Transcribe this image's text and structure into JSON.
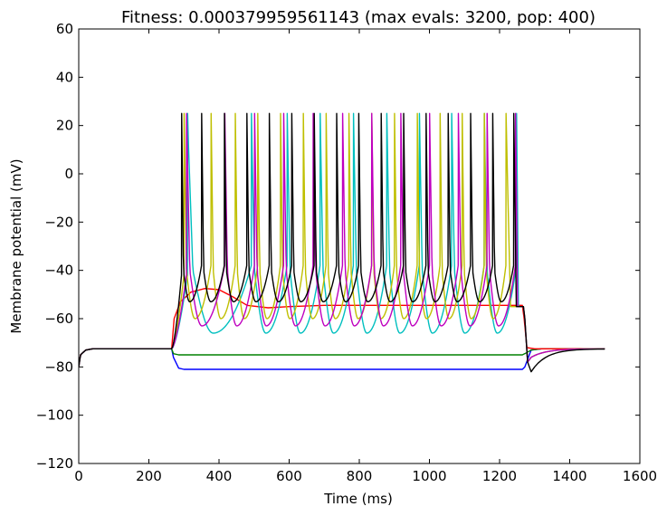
{
  "chart_data": {
    "type": "line",
    "title": "Fitness: 0.000379959561143 (max evals: 3200, pop: 400)",
    "xlabel": "Time (ms)",
    "ylabel": "Membrane potential (mV)",
    "xlim": [
      0,
      1600
    ],
    "ylim": [
      -120,
      60
    ],
    "xticks": [
      0,
      200,
      400,
      600,
      800,
      1000,
      1200,
      1400,
      1600
    ],
    "yticks": [
      -120,
      -100,
      -80,
      -60,
      -40,
      -20,
      0,
      20,
      40,
      60
    ],
    "xtick_labels": [
      "0",
      "200",
      "400",
      "600",
      "800",
      "1000",
      "1200",
      "1400",
      "1600"
    ],
    "ytick_labels": [
      "−120",
      "−100",
      "−80",
      "−60",
      "−40",
      "−20",
      "0",
      "20",
      "40",
      "60"
    ],
    "grid": false,
    "legend": "none",
    "series": [
      {
        "color": "#0000ff",
        "x": [
          0,
          5,
          20,
          40,
          265,
          270,
          285,
          300,
          1265,
          1272,
          1290,
          1320,
          1500
        ],
        "y": [
          -80,
          -75,
          -73,
          -72.5,
          -72.5,
          -76,
          -80.5,
          -81,
          -81,
          -80,
          -73,
          -72.5,
          -72.5
        ]
      },
      {
        "color": "#008000",
        "x": [
          0,
          5,
          20,
          40,
          265,
          270,
          285,
          300,
          1265,
          1272,
          1290,
          1320,
          1500
        ],
        "y": [
          -80,
          -75,
          -73,
          -72.5,
          -72.5,
          -74.5,
          -75,
          -75,
          -75,
          -74.5,
          -73,
          -72.5,
          -72.5
        ]
      },
      {
        "color": "#ff0000",
        "x": [
          0,
          5,
          20,
          40,
          265,
          272,
          290,
          320,
          360,
          400,
          440,
          480,
          540,
          600,
          700,
          800,
          1000,
          1200,
          1265,
          1270,
          1278,
          1300,
          1500
        ],
        "y": [
          -80,
          -75,
          -73,
          -72.5,
          -72.5,
          -60,
          -53,
          -49,
          -47.5,
          -48,
          -51,
          -54.5,
          -55.5,
          -55,
          -54.5,
          -54.5,
          -54.5,
          -54.5,
          -54.5,
          -60,
          -72,
          -72.5,
          -72.5
        ]
      },
      {
        "color": "#00bfbf",
        "spikes": [
          310,
          492,
          594,
          688,
          783,
          878,
          971,
          1063,
          1156,
          1248
        ],
        "x": [
          0,
          5,
          20,
          40,
          265,
          270,
          1500
        ],
        "y": [
          -80,
          -75,
          -73,
          -72.5,
          -72.5,
          -72.5,
          -72.5
        ]
      },
      {
        "color": "#bfbf00",
        "spikes": [
          300,
          377,
          446,
          510,
          575,
          640,
          705,
          770,
          835,
          900,
          965,
          1030,
          1093,
          1156,
          1218
        ],
        "x": [
          0,
          5,
          20,
          40,
          265,
          270,
          1500
        ],
        "y": [
          -80,
          -75,
          -73,
          -72.5,
          -72.5,
          -72.5,
          -72.5
        ]
      },
      {
        "color": "#bf00bf",
        "spikes": [
          307,
          416,
          501,
          584,
          668,
          752,
          835,
          918,
          1000,
          1082,
          1164,
          1245
        ],
        "x": [
          0,
          5,
          20,
          40,
          265,
          270,
          1500
        ],
        "y": [
          -80,
          -75,
          -73,
          -72.5,
          -72.5,
          -72.5,
          -72.5
        ]
      },
      {
        "color": "#000000",
        "spikes": [
          293,
          350,
          415,
          479,
          543,
          607,
          671,
          735,
          798,
          862,
          926,
          990,
          1053,
          1117,
          1180,
          1240
        ],
        "x": [
          0,
          5,
          20,
          40,
          265,
          270,
          1500
        ],
        "y": [
          -80,
          -75,
          -73,
          -72.5,
          -72.5,
          -72.5,
          -72.5
        ]
      }
    ]
  }
}
